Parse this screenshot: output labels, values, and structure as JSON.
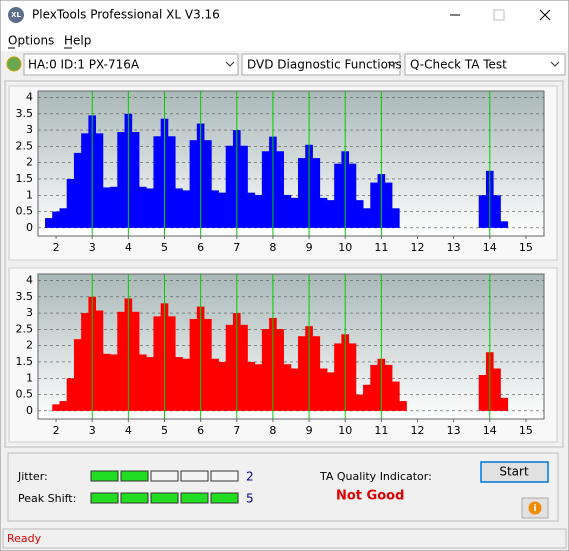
{
  "window": {
    "title": "PlexTools Professional XL V3.16",
    "app_icon": "XL"
  },
  "menu": [
    "Options",
    "Help"
  ],
  "toolbar": {
    "drive": "HA:0 ID:1  PX-716A",
    "function": "DVD Diagnostic Functions",
    "test": "Q-Check TA Test"
  },
  "charts": [
    {
      "type": "bar",
      "color": "#0000ff",
      "marker_color": "#00d000",
      "grid": true,
      "xlim": [
        1.5,
        15.5
      ],
      "xticks": [
        2,
        3,
        4,
        5,
        6,
        7,
        8,
        9,
        10,
        11,
        12,
        13,
        14,
        15
      ],
      "ylim": [
        -0.25,
        4.2
      ],
      "yticks": [
        0,
        0.5,
        1,
        1.5,
        2,
        2.5,
        3,
        3.5,
        4
      ],
      "markers": [
        3,
        4,
        5,
        6,
        7,
        8,
        9,
        10,
        11,
        14
      ],
      "x": [
        1.8,
        2.0,
        2.2,
        2.4,
        2.6,
        2.8,
        3.0,
        3.2,
        3.4,
        3.6,
        3.8,
        4.0,
        4.2,
        4.4,
        4.6,
        4.8,
        5.0,
        5.2,
        5.4,
        5.6,
        5.8,
        6.0,
        6.2,
        6.4,
        6.6,
        6.8,
        7.0,
        7.2,
        7.4,
        7.6,
        7.8,
        8.0,
        8.2,
        8.4,
        8.6,
        8.8,
        9.0,
        9.2,
        9.4,
        9.6,
        9.8,
        10.0,
        10.2,
        10.4,
        10.6,
        10.8,
        11.0,
        11.2,
        11.4,
        11.6,
        11.8,
        12.0,
        12.2,
        12.4,
        12.6,
        12.8,
        13.0,
        13.2,
        13.4,
        13.6,
        13.8,
        14.0,
        14.2,
        14.4,
        14.6,
        14.8
      ],
      "values": [
        0.3,
        0.5,
        0.6,
        1.5,
        2.3,
        2.9,
        3.45,
        2.9,
        1.24,
        1.26,
        2.94,
        3.5,
        2.94,
        1.26,
        1.21,
        2.81,
        3.35,
        2.81,
        1.21,
        1.15,
        2.69,
        3.2,
        2.69,
        1.15,
        1.08,
        2.52,
        3.0,
        2.52,
        1.08,
        1.01,
        2.35,
        2.8,
        2.35,
        1.01,
        0.92,
        2.14,
        2.55,
        2.14,
        0.92,
        0.85,
        1.97,
        2.35,
        1.97,
        0.85,
        0.6,
        1.39,
        1.65,
        1.39,
        0.6,
        0,
        0,
        0,
        0,
        0,
        0,
        0,
        0,
        0,
        0,
        0,
        1.0,
        1.75,
        1.0,
        0.2,
        0,
        0
      ]
    },
    {
      "type": "bar",
      "color": "#ff0000",
      "marker_color": "#00d000",
      "grid": true,
      "xlim": [
        1.5,
        15.5
      ],
      "xticks": [
        2,
        3,
        4,
        5,
        6,
        7,
        8,
        9,
        10,
        11,
        12,
        13,
        14,
        15
      ],
      "ylim": [
        -0.25,
        4.2
      ],
      "yticks": [
        0,
        0.5,
        1,
        1.5,
        2,
        2.5,
        3,
        3.5,
        4
      ],
      "markers": [
        3,
        4,
        5,
        6,
        7,
        8,
        9,
        10,
        11,
        14
      ],
      "x": [
        1.8,
        2.0,
        2.2,
        2.4,
        2.6,
        2.8,
        3.0,
        3.2,
        3.4,
        3.6,
        3.8,
        4.0,
        4.2,
        4.4,
        4.6,
        4.8,
        5.0,
        5.2,
        5.4,
        5.6,
        5.8,
        6.0,
        6.2,
        6.4,
        6.6,
        6.8,
        7.0,
        7.2,
        7.4,
        7.6,
        7.8,
        8.0,
        8.2,
        8.4,
        8.6,
        8.8,
        9.0,
        9.2,
        9.4,
        9.6,
        9.8,
        10.0,
        10.2,
        10.4,
        10.6,
        10.8,
        11.0,
        11.2,
        11.4,
        11.6,
        11.8,
        12.0,
        12.2,
        12.4,
        12.6,
        12.8,
        13.0,
        13.2,
        13.4,
        13.6,
        13.8,
        14.0,
        14.2,
        14.4,
        14.6,
        14.8
      ],
      "values": [
        0,
        0.2,
        0.3,
        1.0,
        2.2,
        3.0,
        3.5,
        3.08,
        1.75,
        1.73,
        3.04,
        3.45,
        3.04,
        1.73,
        1.65,
        2.9,
        3.3,
        2.9,
        1.65,
        1.6,
        2.82,
        3.2,
        2.82,
        1.6,
        1.5,
        2.64,
        3.0,
        2.64,
        1.5,
        1.43,
        2.51,
        2.85,
        2.51,
        1.43,
        1.3,
        2.29,
        2.6,
        2.29,
        1.3,
        1.18,
        2.07,
        2.35,
        2.07,
        0.5,
        0.8,
        1.41,
        1.6,
        1.41,
        0.9,
        0.3,
        0,
        0,
        0,
        0,
        0,
        0,
        0,
        0,
        0,
        0,
        1.1,
        1.8,
        1.3,
        0.4,
        0,
        0
      ]
    }
  ],
  "results": {
    "jitter": {
      "label": "Jitter:",
      "value": 2
    },
    "peak_shift": {
      "label": "Peak Shift:",
      "value": 5
    },
    "quality_label": "TA Quality Indicator:",
    "quality": "Not Good",
    "start": "Start",
    "info": "i"
  },
  "status": "Ready"
}
